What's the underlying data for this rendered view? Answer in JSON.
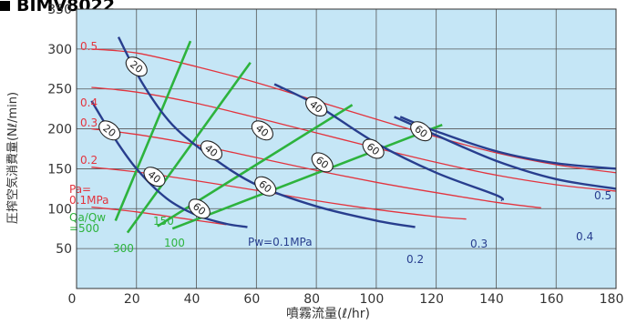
{
  "header": {
    "title": "BIMV8022"
  },
  "chart_data": {
    "type": "line",
    "title": "",
    "xlabel": "噴霧流量(ℓ/hr)",
    "ylabel": "圧搾空気消費量(Nℓ/min)",
    "xlim": [
      0,
      180
    ],
    "ylim": [
      0,
      350
    ],
    "x_ticks": [
      0,
      20,
      40,
      60,
      80,
      100,
      120,
      140,
      160,
      180
    ],
    "y_ticks": [
      50,
      100,
      150,
      200,
      250,
      300,
      350
    ],
    "y_grid_lines": [
      50,
      100,
      150,
      200,
      250,
      300
    ],
    "grid": true,
    "background_color": "#c5e6f6",
    "colors": {
      "air_pressure": "#e3343e",
      "water_pressure": "#283e8e",
      "ratio": "#2db33d"
    },
    "air_pressure_series": [
      {
        "name": "0.5",
        "points": [
          [
            5,
            300
          ],
          [
            20,
            295
          ],
          [
            40,
            278
          ],
          [
            60,
            258
          ],
          [
            80,
            235
          ],
          [
            100,
            212
          ],
          [
            120,
            190
          ],
          [
            140,
            170
          ],
          [
            160,
            155
          ],
          [
            180,
            145
          ]
        ]
      },
      {
        "name": "0.4",
        "points": [
          [
            5,
            252
          ],
          [
            20,
            246
          ],
          [
            40,
            232
          ],
          [
            60,
            214
          ],
          [
            80,
            195
          ],
          [
            100,
            176
          ],
          [
            120,
            158
          ],
          [
            140,
            142
          ],
          [
            160,
            130
          ],
          [
            180,
            122
          ]
        ]
      },
      {
        "name": "0.3",
        "points": [
          [
            5,
            200
          ],
          [
            20,
            193
          ],
          [
            40,
            180
          ],
          [
            60,
            164
          ],
          [
            80,
            148
          ],
          [
            100,
            133
          ],
          [
            120,
            120
          ],
          [
            140,
            108
          ],
          [
            155,
            101
          ]
        ]
      },
      {
        "name": "0.2",
        "points": [
          [
            5,
            152
          ],
          [
            20,
            146
          ],
          [
            40,
            135
          ],
          [
            60,
            123
          ],
          [
            80,
            110
          ],
          [
            100,
            99
          ],
          [
            120,
            90
          ],
          [
            130,
            87
          ]
        ]
      },
      {
        "name": "Pa=\n0.1MPa",
        "points": [
          [
            5,
            102
          ],
          [
            20,
            96
          ],
          [
            35,
            88
          ],
          [
            50,
            80
          ]
        ]
      }
    ],
    "water_pressure_series": [
      {
        "name": "Pw=0.1MPa",
        "points": [
          [
            5,
            235
          ],
          [
            12,
            192
          ],
          [
            20,
            150
          ],
          [
            30,
            113
          ],
          [
            40,
            92
          ],
          [
            50,
            81
          ],
          [
            57,
            77
          ]
        ]
      },
      {
        "name": "0.2",
        "points": [
          [
            14,
            315
          ],
          [
            22,
            257
          ],
          [
            32,
            205
          ],
          [
            45,
            165
          ],
          [
            60,
            130
          ],
          [
            80,
            103
          ],
          [
            100,
            85
          ],
          [
            113,
            77
          ]
        ]
      },
      {
        "name": "0.3",
        "points": [
          [
            66,
            256
          ],
          [
            80,
            230
          ],
          [
            100,
            182
          ],
          [
            120,
            145
          ],
          [
            140,
            117
          ],
          [
            142,
            110
          ]
        ]
      },
      {
        "name": "0.4",
        "points": [
          [
            106,
            215
          ],
          [
            120,
            192
          ],
          [
            140,
            160
          ],
          [
            160,
            137
          ],
          [
            180,
            125
          ]
        ]
      },
      {
        "name": "0.5",
        "points": [
          [
            108,
            215
          ],
          [
            120,
            197
          ],
          [
            140,
            172
          ],
          [
            160,
            157
          ],
          [
            180,
            150
          ]
        ]
      }
    ],
    "ratio_series": [
      {
        "name": "Qa/Qw\n=500",
        "points": [
          [
            13,
            85
          ],
          [
            38,
            310
          ]
        ]
      },
      {
        "name": "300",
        "points": [
          [
            17,
            70
          ],
          [
            58,
            283
          ]
        ]
      },
      {
        "name": "150",
        "points": [
          [
            27,
            78
          ],
          [
            92,
            230
          ]
        ]
      },
      {
        "name": "100",
        "points": [
          [
            32,
            75
          ],
          [
            122,
            205
          ]
        ]
      }
    ],
    "water_pressure_markers": [
      {
        "label": "20",
        "x": 20,
        "y": 278
      },
      {
        "label": "20",
        "x": 11,
        "y": 198
      },
      {
        "label": "40",
        "x": 26,
        "y": 140
      },
      {
        "label": "60",
        "x": 41,
        "y": 100
      },
      {
        "label": "40",
        "x": 62,
        "y": 198
      },
      {
        "label": "40",
        "x": 45,
        "y": 173
      },
      {
        "label": "60",
        "x": 63,
        "y": 128
      },
      {
        "label": "40",
        "x": 80,
        "y": 228
      },
      {
        "label": "60",
        "x": 82,
        "y": 158
      },
      {
        "label": "60",
        "x": 99,
        "y": 175
      },
      {
        "label": "60",
        "x": 115,
        "y": 197
      }
    ]
  }
}
